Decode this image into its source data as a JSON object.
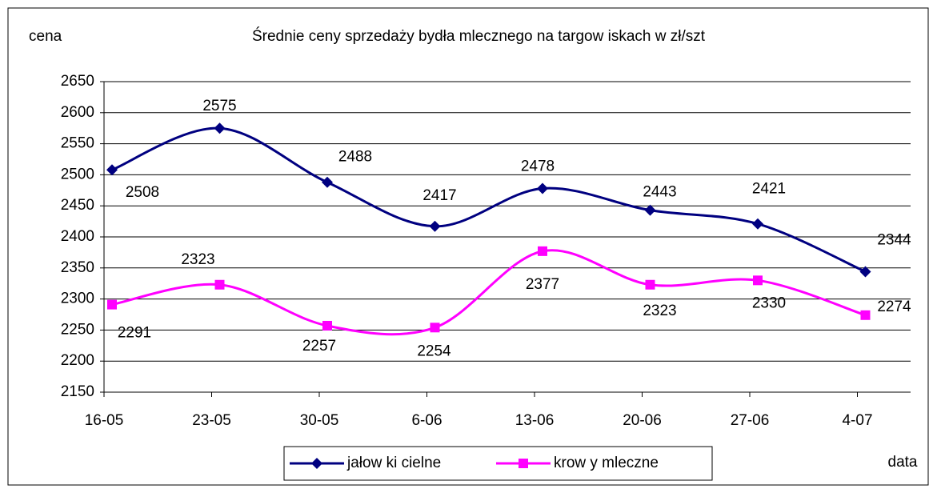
{
  "chart_data": {
    "type": "line",
    "title": "Średnie ceny sprzedaży bydła mlecznego na targow iskach w  zł/szt",
    "y_label": "cena",
    "x_label": "data",
    "categories": [
      "16-05",
      "23-05",
      "30-05",
      "6-06",
      "13-06",
      "20-06",
      "27-06",
      "4-07"
    ],
    "series": [
      {
        "name": "jałow ki cielne",
        "color": "#000080",
        "marker": "diamond",
        "values": [
          2508,
          2575,
          2488,
          2417,
          2478,
          2443,
          2421,
          2344
        ]
      },
      {
        "name": "krow y mleczne",
        "color": "#ff00ff",
        "marker": "square",
        "values": [
          2291,
          2323,
          2257,
          2254,
          2377,
          2323,
          2330,
          2274
        ]
      }
    ],
    "ylim": [
      2150,
      2650
    ],
    "yticks": [
      2150,
      2200,
      2250,
      2300,
      2350,
      2400,
      2450,
      2500,
      2550,
      2600,
      2650
    ],
    "grid": true,
    "legend": "bottom"
  }
}
